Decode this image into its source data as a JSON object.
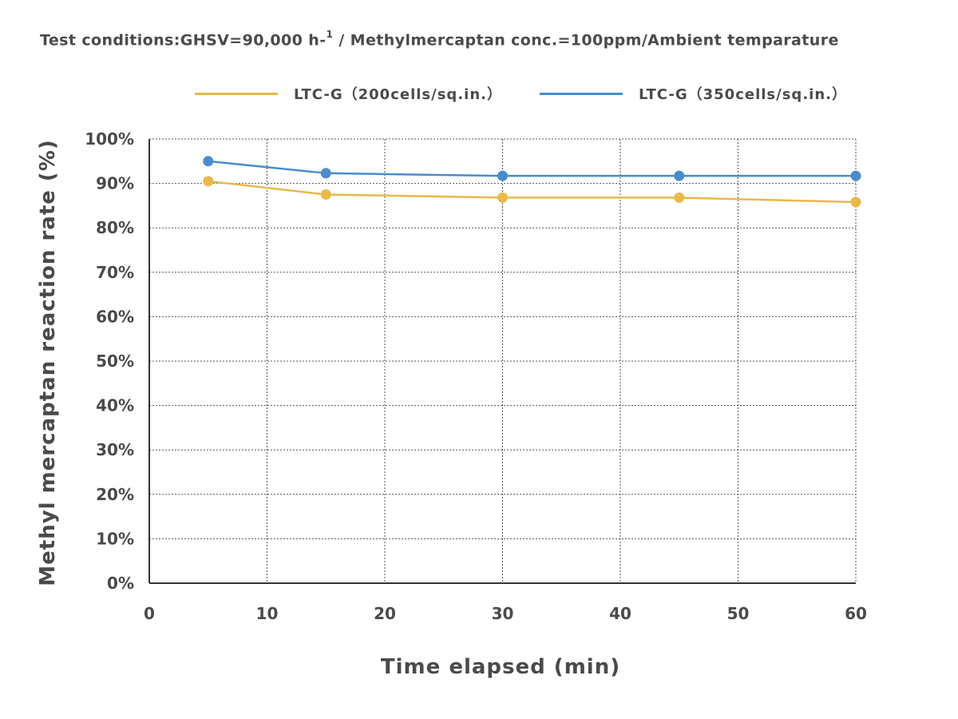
{
  "chart_data": {
    "type": "line",
    "subtitle_prefix": "Test conditions:GHSV=90,000 h-",
    "subtitle_sup": "1",
    "subtitle_suffix": " / Methylmercaptan conc.=100ppm/Ambient temparature",
    "xlabel": "Time elapsed (min)",
    "ylabel": "Methyl mercaptan reaction rate (%)",
    "xlim": [
      0,
      60
    ],
    "ylim": [
      0,
      100
    ],
    "x_ticks": [
      0,
      10,
      20,
      30,
      40,
      50,
      60
    ],
    "x_tick_labels": [
      "0",
      "10",
      "20",
      "30",
      "40",
      "50",
      "60"
    ],
    "y_ticks": [
      0,
      10,
      20,
      30,
      40,
      50,
      60,
      70,
      80,
      90,
      100
    ],
    "y_tick_labels": [
      "0%",
      "10%",
      "20%",
      "30%",
      "40%",
      "50%",
      "60%",
      "70%",
      "80%",
      "90%",
      "100%"
    ],
    "grid": true,
    "legend_position": "top",
    "series": [
      {
        "name": "LTC-G（200cells/sq.in.）",
        "color": "#e9b94a",
        "x": [
          5,
          15,
          30,
          45,
          60
        ],
        "values": [
          90.5,
          87.5,
          86.8,
          86.8,
          85.8
        ]
      },
      {
        "name": "LTC-G（350cells/sq.in.）",
        "color": "#4a8ccb",
        "x": [
          5,
          15,
          30,
          45,
          60
        ],
        "values": [
          95,
          92.3,
          91.7,
          91.7,
          91.7
        ]
      }
    ]
  }
}
